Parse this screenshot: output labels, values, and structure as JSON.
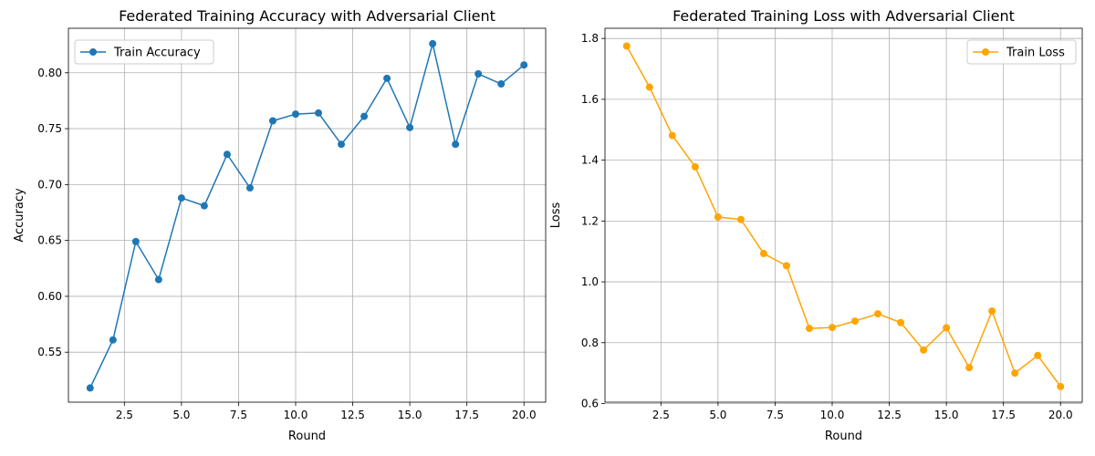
{
  "chart_data": [
    {
      "type": "line",
      "title": "Federated Training Accuracy with Adversarial Client",
      "xlabel": "Round",
      "ylabel": "Accuracy",
      "xlim": [
        0.05,
        20.95
      ],
      "ylim": [
        0.5053,
        0.8398
      ],
      "xticks": [
        2.5,
        5.0,
        7.5,
        10.0,
        12.5,
        15.0,
        17.5,
        20.0
      ],
      "xtick_labels": [
        "2.5",
        "5.0",
        "7.5",
        "10.0",
        "12.5",
        "15.0",
        "17.5",
        "20.0"
      ],
      "yticks": [
        0.55,
        0.6,
        0.65,
        0.7,
        0.75,
        0.8
      ],
      "ytick_labels": [
        "0.55",
        "0.60",
        "0.65",
        "0.70",
        "0.75",
        "0.80"
      ],
      "grid": true,
      "legend": "upper-left",
      "series": [
        {
          "name": "Train Accuracy",
          "color": "#1f77b4",
          "marker": "circle",
          "x": [
            1,
            2,
            3,
            4,
            5,
            6,
            7,
            8,
            9,
            10,
            11,
            12,
            13,
            14,
            15,
            16,
            17,
            18,
            19,
            20
          ],
          "y": [
            0.518,
            0.561,
            0.649,
            0.615,
            0.688,
            0.681,
            0.727,
            0.697,
            0.757,
            0.763,
            0.764,
            0.736,
            0.761,
            0.795,
            0.751,
            0.826,
            0.736,
            0.799,
            0.79,
            0.807
          ]
        }
      ]
    },
    {
      "type": "line",
      "title": "Federated Training Loss with Adversarial Client",
      "xlabel": "Round",
      "ylabel": "Loss",
      "xlim": [
        0.05,
        20.95
      ],
      "ylim": [
        0.6045,
        1.8335
      ],
      "xticks": [
        2.5,
        5.0,
        7.5,
        10.0,
        12.5,
        15.0,
        17.5,
        20.0
      ],
      "xtick_labels": [
        "2.5",
        "5.0",
        "7.5",
        "10.0",
        "12.5",
        "15.0",
        "17.5",
        "20.0"
      ],
      "yticks": [
        0.6,
        0.8,
        1.0,
        1.2,
        1.4,
        1.6,
        1.8
      ],
      "ytick_labels": [
        "0.6",
        "0.8",
        "1.0",
        "1.2",
        "1.4",
        "1.6",
        "1.8"
      ],
      "grid": true,
      "legend": "upper-right",
      "series": [
        {
          "name": "Train Loss",
          "color": "#ffa500",
          "marker": "circle",
          "x": [
            1,
            2,
            3,
            4,
            5,
            6,
            7,
            8,
            9,
            10,
            11,
            12,
            13,
            14,
            15,
            16,
            17,
            18,
            19,
            20
          ],
          "y": [
            1.775,
            1.64,
            1.481,
            1.378,
            1.213,
            1.205,
            1.093,
            1.053,
            0.847,
            0.85,
            0.871,
            0.895,
            0.866,
            0.776,
            0.849,
            0.718,
            0.904,
            0.7,
            0.758,
            0.656
          ]
        }
      ]
    }
  ]
}
